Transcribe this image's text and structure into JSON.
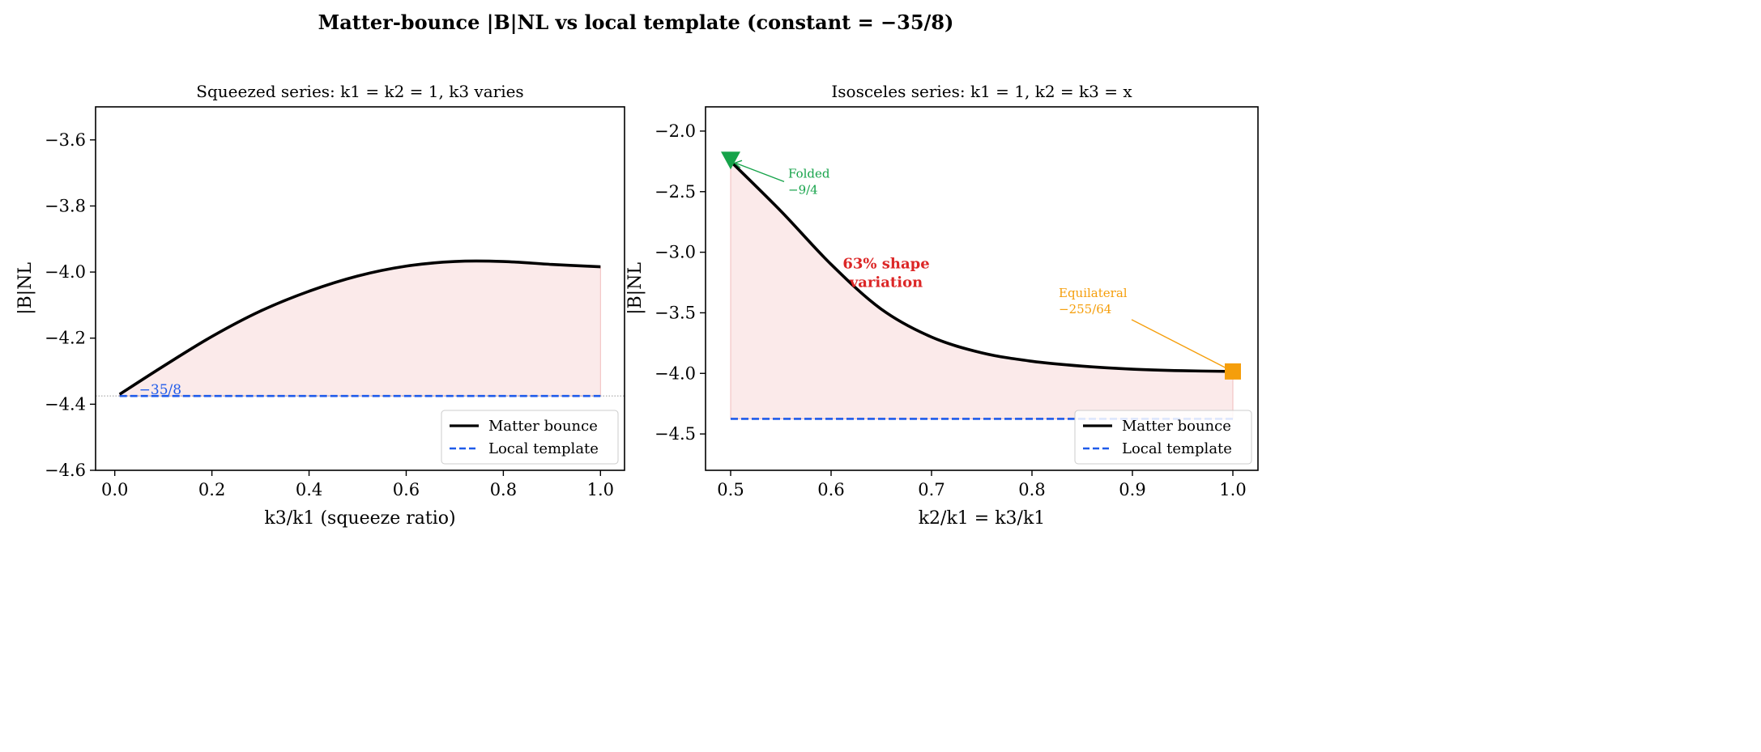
{
  "suptitle": "Matter-bounce |B|NL vs local template (constant = −35/8)",
  "colors": {
    "curve": "#000000",
    "template": "#1f5bea",
    "fill": "#f7d6d6",
    "folded": "#16a34a",
    "equilateral": "#f59e0b",
    "shape": "#dc2626",
    "refline": "#999999"
  },
  "chart_data": [
    {
      "type": "line",
      "title": "Squeezed series: k1 = k2 = 1, k3 varies",
      "xlabel": "k3/k1  (squeeze ratio)",
      "ylabel": "|B|NL",
      "xlim": [
        -0.0395,
        1.0495
      ],
      "ylim": [
        -4.6,
        -3.5
      ],
      "xticks": [
        0.0,
        0.2,
        0.4,
        0.6,
        0.8,
        1.0
      ],
      "xtick_labels": [
        "0.0",
        "0.2",
        "0.4",
        "0.6",
        "0.8",
        "1.0"
      ],
      "yticks": [
        -4.6,
        -4.4,
        -4.2,
        -4.0,
        -3.8,
        -3.6
      ],
      "ytick_labels": [
        "−4.6",
        "−4.4",
        "−4.2",
        "−4.0",
        "−3.8",
        "−3.6"
      ],
      "grid": false,
      "legend": "bottom-right",
      "series": [
        {
          "name": "Matter bounce",
          "style": "solid",
          "x": [
            0.01,
            0.1,
            0.2,
            0.3,
            0.4,
            0.5,
            0.6,
            0.7,
            0.8,
            0.9,
            1.0
          ],
          "y": [
            -4.37,
            -4.285,
            -4.195,
            -4.118,
            -4.058,
            -4.012,
            -3.982,
            -3.968,
            -3.968,
            -3.977,
            -3.984
          ]
        },
        {
          "name": "Local template",
          "style": "dashed",
          "x": [
            0.01,
            1.0
          ],
          "y": [
            -4.375,
            -4.375
          ]
        }
      ],
      "reference_line": -4.375,
      "annotations": [
        {
          "text": "−35/8",
          "x": 0.05,
          "y": -4.375
        }
      ]
    },
    {
      "type": "line",
      "title": "Isosceles series: k1 = 1, k2 = k3 = x",
      "xlabel": "k2/k1 = k3/k1",
      "ylabel": "|B|NL",
      "xlim": [
        0.475,
        1.025
      ],
      "ylim": [
        -4.8,
        -1.8
      ],
      "xticks": [
        0.5,
        0.6,
        0.7,
        0.8,
        0.9,
        1.0
      ],
      "xtick_labels": [
        "0.5",
        "0.6",
        "0.7",
        "0.8",
        "0.9",
        "1.0"
      ],
      "yticks": [
        -4.5,
        -4.0,
        -3.5,
        -3.0,
        -2.5,
        -2.0
      ],
      "ytick_labels": [
        "−4.5",
        "−4.0",
        "−3.5",
        "−3.0",
        "−2.5",
        "−2.0"
      ],
      "grid": false,
      "legend": "bottom-right",
      "series": [
        {
          "name": "Matter bounce",
          "style": "solid",
          "x": [
            0.5,
            0.55,
            0.6,
            0.65,
            0.7,
            0.75,
            0.8,
            0.85,
            0.9,
            0.95,
            1.0
          ],
          "y": [
            -2.25,
            -2.66,
            -3.1,
            -3.47,
            -3.7,
            -3.83,
            -3.9,
            -3.94,
            -3.965,
            -3.978,
            -3.984
          ]
        },
        {
          "name": "Local template",
          "style": "dashed",
          "x": [
            0.5,
            1.0
          ],
          "y": [
            -4.375,
            -4.375
          ]
        }
      ],
      "markers": [
        {
          "label": "Folded",
          "value_label": "−9/4",
          "x": 0.5,
          "y": -2.25,
          "shape": "triangle-down"
        },
        {
          "label": "Equilateral",
          "value_label": "−255/64",
          "x": 1.0,
          "y": -3.984,
          "shape": "square"
        }
      ],
      "annotations": [
        {
          "text_line1": "63% shape",
          "text_line2": "variation",
          "x": 0.65,
          "y": -3.2
        }
      ]
    }
  ]
}
